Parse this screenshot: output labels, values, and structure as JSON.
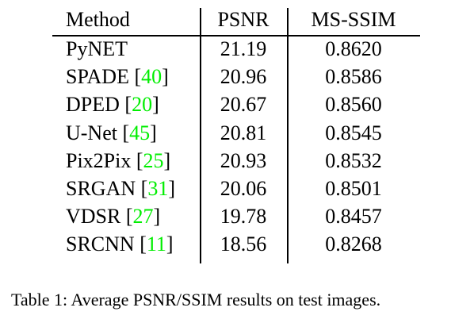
{
  "table": {
    "headers": {
      "method": "Method",
      "psnr": "PSNR",
      "ms_ssim": "MS-SSIM"
    },
    "rows": [
      {
        "method": "PyNET",
        "ref": "",
        "psnr": "21.19",
        "ms_ssim": "0.8620"
      },
      {
        "method": "SPADE",
        "ref": "40",
        "psnr": "20.96",
        "ms_ssim": "0.8586"
      },
      {
        "method": "DPED",
        "ref": "20",
        "psnr": "20.67",
        "ms_ssim": "0.8560"
      },
      {
        "method": "U-Net",
        "ref": "45",
        "psnr": "20.81",
        "ms_ssim": "0.8545"
      },
      {
        "method": "Pix2Pix",
        "ref": "25",
        "psnr": "20.93",
        "ms_ssim": "0.8532"
      },
      {
        "method": "SRGAN",
        "ref": "31",
        "psnr": "20.06",
        "ms_ssim": "0.8501"
      },
      {
        "method": "VDSR",
        "ref": "27",
        "psnr": "19.78",
        "ms_ssim": "0.8457"
      },
      {
        "method": "SRCNN",
        "ref": "11",
        "psnr": "18.56",
        "ms_ssim": "0.8268"
      }
    ]
  },
  "caption": {
    "label": "Table 1:",
    "text": "Average PSNR/SSIM results on test images."
  },
  "colors": {
    "citation": "#00ee00",
    "text": "#000000"
  }
}
